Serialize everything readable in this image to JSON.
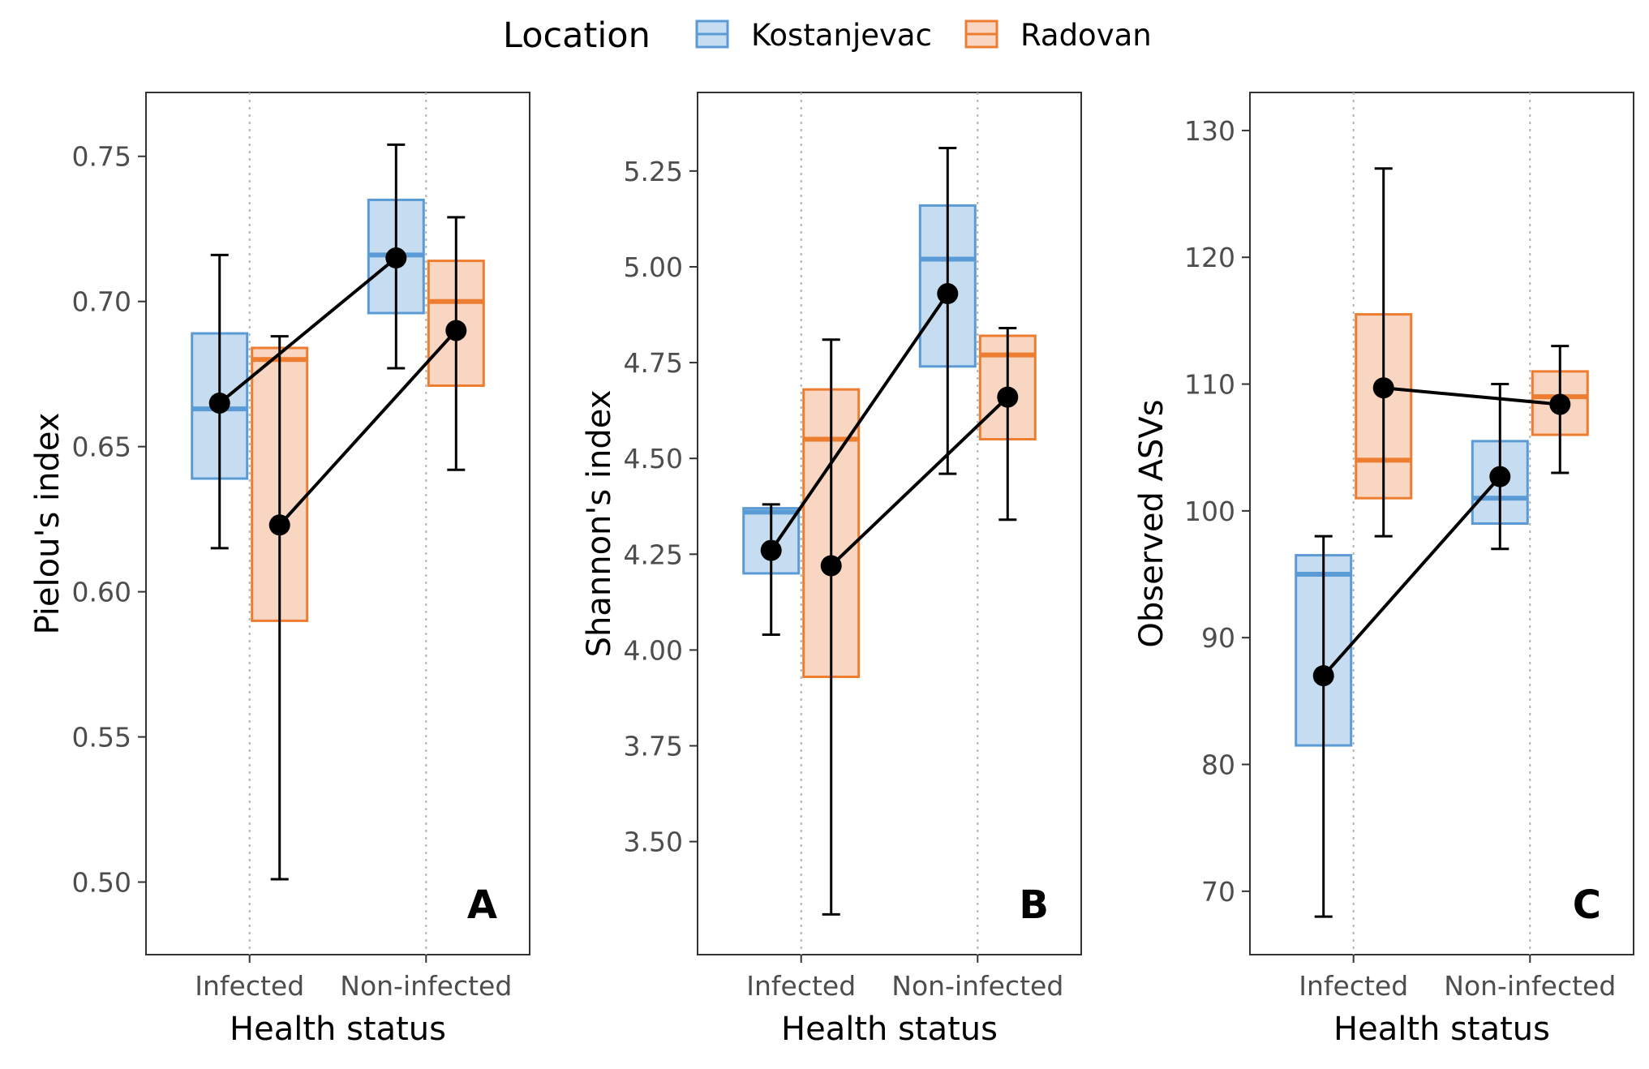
{
  "legend": {
    "title": "Location",
    "items": [
      {
        "label": "Kostanjevac",
        "stroke": "#5b9bd5",
        "fill": "#c6dcf1"
      },
      {
        "label": "Radovan",
        "stroke": "#ed7d31",
        "fill": "#f9d6c1"
      }
    ]
  },
  "chart_data": [
    {
      "type": "box",
      "panel": "A",
      "xlabel": "Health status",
      "ylabel": "Pielou's index",
      "categories": [
        "Infected",
        "Non-infected"
      ],
      "ylim": [
        0.475,
        0.772
      ],
      "yticks": [
        0.5,
        0.55,
        0.6,
        0.65,
        0.7,
        0.75
      ],
      "ytick_labels": [
        "0.50",
        "0.55",
        "0.60",
        "0.65",
        "0.70",
        "0.75"
      ],
      "series": [
        {
          "name": "Kostanjevac",
          "boxes": [
            {
              "q1": 0.639,
              "median": 0.663,
              "q3": 0.689
            },
            {
              "q1": 0.696,
              "median": 0.716,
              "q3": 0.735
            }
          ],
          "mean": [
            0.665,
            0.715
          ],
          "error": [
            [
              0.615,
              0.716
            ],
            [
              0.677,
              0.754
            ]
          ]
        },
        {
          "name": "Radovan",
          "boxes": [
            {
              "q1": 0.59,
              "median": 0.68,
              "q3": 0.684
            },
            {
              "q1": 0.671,
              "median": 0.7,
              "q3": 0.714
            }
          ],
          "mean": [
            0.623,
            0.69
          ],
          "error": [
            [
              0.501,
              0.688
            ],
            [
              0.642,
              0.729
            ]
          ]
        }
      ]
    },
    {
      "type": "box",
      "panel": "B",
      "xlabel": "Health status",
      "ylabel": "Shannon's index",
      "categories": [
        "Infected",
        "Non-infected"
      ],
      "ylim": [
        3.205,
        5.455
      ],
      "yticks": [
        3.5,
        3.75,
        4.0,
        4.25,
        4.5,
        4.75,
        5.0,
        5.25
      ],
      "ytick_labels": [
        "3.50",
        "3.75",
        "4.00",
        "4.25",
        "4.50",
        "4.75",
        "5.00",
        "5.25"
      ],
      "series": [
        {
          "name": "Kostanjevac",
          "boxes": [
            {
              "q1": 4.2,
              "median": 4.36,
              "q3": 4.37
            },
            {
              "q1": 4.74,
              "median": 5.02,
              "q3": 5.16
            }
          ],
          "mean": [
            4.26,
            4.93
          ],
          "error": [
            [
              4.04,
              4.38
            ],
            [
              4.46,
              5.31
            ]
          ]
        },
        {
          "name": "Radovan",
          "boxes": [
            {
              "q1": 3.93,
              "median": 4.55,
              "q3": 4.68
            },
            {
              "q1": 4.55,
              "median": 4.77,
              "q3": 4.82
            }
          ],
          "mean": [
            4.22,
            4.66
          ],
          "error": [
            [
              3.31,
              4.81
            ],
            [
              4.34,
              4.84
            ]
          ]
        }
      ]
    },
    {
      "type": "box",
      "panel": "C",
      "xlabel": "Health status",
      "ylabel": "Observed ASVs",
      "categories": [
        "Infected",
        "Non-infected"
      ],
      "ylim": [
        65.0,
        133.0
      ],
      "yticks": [
        70,
        80,
        90,
        100,
        110,
        120,
        130
      ],
      "ytick_labels": [
        "70",
        "80",
        "90",
        "100",
        "110",
        "120",
        "130"
      ],
      "series": [
        {
          "name": "Kostanjevac",
          "boxes": [
            {
              "q1": 81.5,
              "median": 95.0,
              "q3": 96.5
            },
            {
              "q1": 99.0,
              "median": 101.0,
              "q3": 105.5
            }
          ],
          "mean": [
            87.0,
            102.7
          ],
          "error": [
            [
              68.0,
              98.0
            ],
            [
              97.0,
              110.0
            ]
          ]
        },
        {
          "name": "Radovan",
          "boxes": [
            {
              "q1": 101.0,
              "median": 104.0,
              "q3": 115.5
            },
            {
              "q1": 106.0,
              "median": 109.0,
              "q3": 111.0
            }
          ],
          "mean": [
            109.7,
            108.4
          ],
          "error": [
            [
              98.0,
              127.0
            ],
            [
              103.0,
              113.0
            ]
          ]
        }
      ]
    }
  ]
}
